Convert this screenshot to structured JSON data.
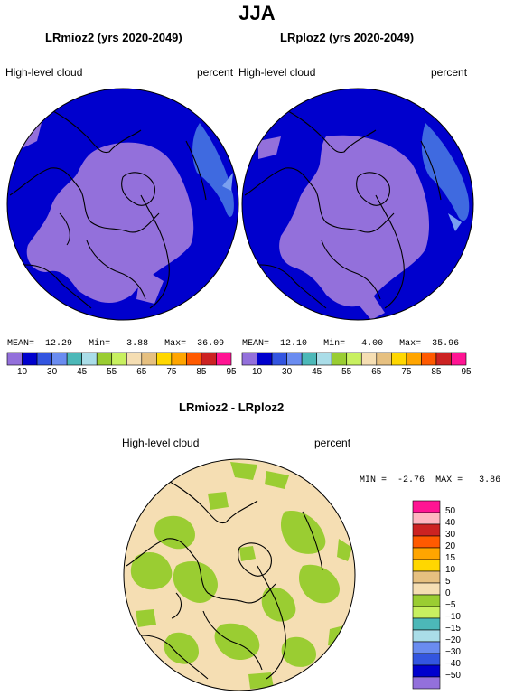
{
  "title": "JJA",
  "panels": [
    {
      "id": "left",
      "title": "LRmioz2 (yrs 2020-2049)",
      "variable": "High-level cloud",
      "units": "percent",
      "stats": {
        "mean_label": "MEAN=",
        "mean": "12.29",
        "min_label": "Min=",
        "min": "3.88",
        "max_label": "Max=",
        "max": "36.09"
      }
    },
    {
      "id": "right",
      "title": "LRploz2 (yrs 2020-2049)",
      "variable": "High-level cloud",
      "units": "percent",
      "stats": {
        "mean_label": "MEAN=",
        "mean": "12.10",
        "min_label": "Min=",
        "min": "4.00",
        "max_label": "Max=",
        "max": "35.96"
      }
    }
  ],
  "top_colorbar": {
    "colors": [
      "#9370db",
      "#0000cd",
      "#3355e0",
      "#6a8cf0",
      "#4cb8b8",
      "#aadde8",
      "#9acd32",
      "#c8f060",
      "#f5deb3",
      "#e6c080",
      "#ffd700",
      "#ffa500",
      "#ff5a00",
      "#cc2222",
      "#ff1493"
    ],
    "tick_labels": [
      "10",
      "30",
      "45",
      "55",
      "65",
      "75",
      "85",
      "95"
    ]
  },
  "diff_panel": {
    "title": "LRmioz2 - LRploz2",
    "variable": "High-level cloud",
    "units": "percent",
    "stats": {
      "min_label": "MIN =",
      "min": "-2.76",
      "max_label": "MAX =",
      "max": "3.86"
    }
  },
  "diff_colorbar": {
    "colors_top_to_bottom": [
      "#ff1493",
      "#ffb6c1",
      "#cc2222",
      "#ff5a00",
      "#ffa500",
      "#ffd700",
      "#e6c080",
      "#f5deb3",
      "#9acd32",
      "#c8f060",
      "#4cb8b8",
      "#aadde8",
      "#6a8cf0",
      "#3355e0",
      "#0000cd",
      "#9370db"
    ],
    "labels_top_to_bottom": [
      "50",
      "40",
      "30",
      "20",
      "15",
      "10",
      "5",
      "0",
      "−5",
      "−10",
      "−15",
      "−20",
      "−30",
      "−40",
      "−50"
    ]
  }
}
